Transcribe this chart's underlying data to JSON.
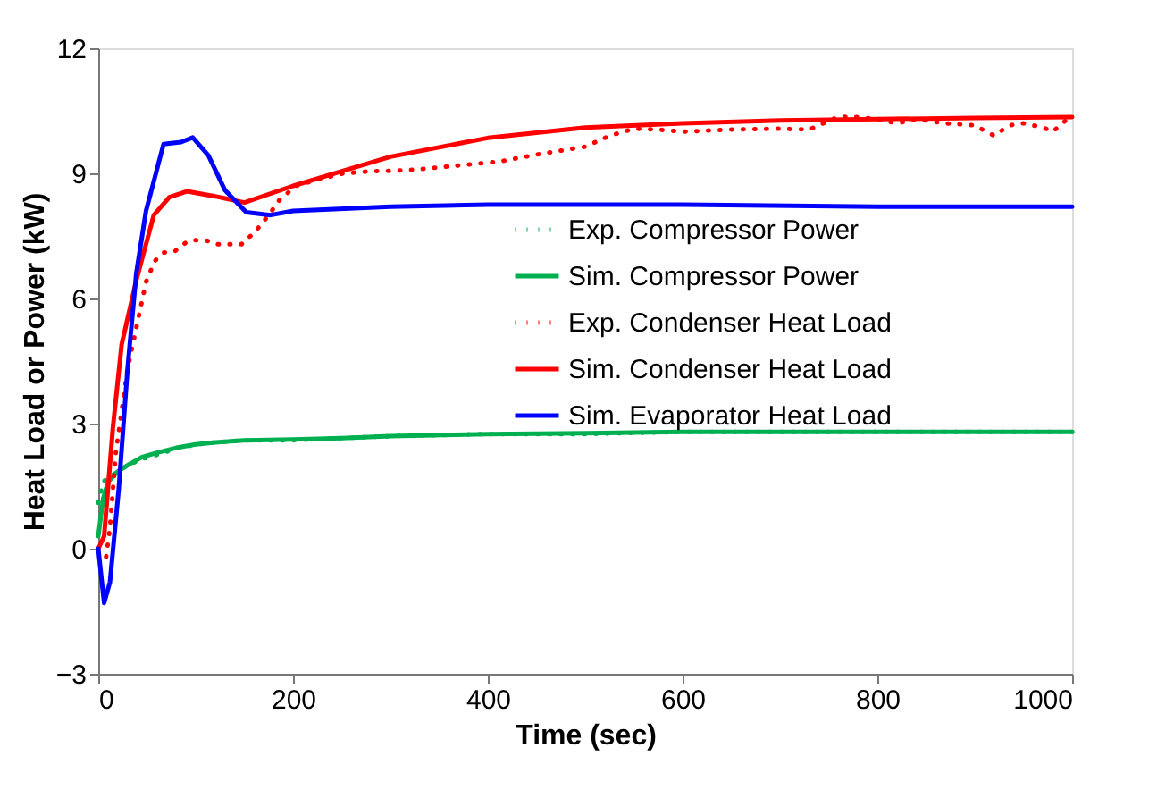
{
  "chart_data": {
    "type": "line",
    "xlabel": "Time (sec)",
    "ylabel": "Heat Load or Power (kW)",
    "xlim": [
      0,
      1000
    ],
    "xticks": [
      0,
      200,
      400,
      600,
      800,
      1000
    ],
    "ylim": [
      -3,
      12
    ],
    "yticks": [
      -3,
      0,
      3,
      6,
      9,
      12
    ],
    "grid": false,
    "legend": "right",
    "series": [
      {
        "name": "Exp. Compressor Power",
        "color": "#00b050",
        "line_style": "dotted",
        "x": [
          0,
          5,
          10,
          20,
          30,
          45,
          60,
          80,
          100,
          120,
          150,
          200,
          250,
          300,
          400,
          500,
          600,
          700,
          800,
          900,
          1000
        ],
        "values": [
          1.1,
          1.6,
          1.7,
          1.85,
          2.0,
          2.15,
          2.25,
          2.4,
          2.5,
          2.55,
          2.6,
          2.6,
          2.65,
          2.7,
          2.75,
          2.75,
          2.8,
          2.8,
          2.8,
          2.8,
          2.8
        ]
      },
      {
        "name": "Sim. Compressor Power",
        "color": "#00b050",
        "line_style": "solid",
        "x": [
          0,
          5,
          10,
          20,
          30,
          45,
          60,
          80,
          100,
          120,
          150,
          200,
          250,
          300,
          400,
          500,
          600,
          700,
          800,
          900,
          1000
        ],
        "values": [
          0.3,
          1.2,
          1.6,
          1.85,
          2.0,
          2.2,
          2.3,
          2.42,
          2.5,
          2.55,
          2.6,
          2.62,
          2.65,
          2.7,
          2.75,
          2.77,
          2.8,
          2.8,
          2.8,
          2.8,
          2.8
        ]
      },
      {
        "name": "Exp. Condenser Heat Load",
        "color": "#ff0000",
        "line_style": "dotted",
        "x": [
          8,
          12,
          18,
          24,
          30,
          40,
          49,
          58,
          67,
          79,
          91,
          100,
          110,
          122,
          134,
          147,
          161,
          175,
          186,
          203,
          225,
          252,
          280,
          313,
          340,
          374,
          411,
          450,
          500,
          525,
          550,
          575,
          600,
          650,
          700,
          730,
          760,
          780,
          800,
          820,
          840,
          870,
          900,
          920,
          935,
          950,
          970,
          980,
          1000
        ],
        "values": [
          -0.2,
          0.5,
          2.3,
          3.3,
          4.3,
          5.4,
          6.4,
          6.9,
          7.1,
          7.14,
          7.36,
          7.4,
          7.4,
          7.3,
          7.3,
          7.3,
          7.6,
          8.0,
          8.36,
          8.7,
          8.85,
          9.0,
          9.05,
          9.07,
          9.12,
          9.2,
          9.28,
          9.45,
          9.64,
          9.9,
          10.07,
          10.05,
          10.0,
          10.05,
          10.07,
          10.05,
          10.36,
          10.35,
          10.3,
          10.2,
          10.3,
          10.2,
          10.15,
          9.9,
          10.15,
          10.2,
          10.1,
          10.0,
          10.4
        ]
      },
      {
        "name": "Sim. Condenser Heat Load",
        "color": "#ff0000",
        "line_style": "solid",
        "x": [
          0,
          6,
          15,
          24,
          39,
          57,
          73,
          91,
          120,
          150,
          200,
          250,
          300,
          400,
          500,
          600,
          700,
          800,
          900,
          1000
        ],
        "values": [
          0,
          0.3,
          2.9,
          4.9,
          6.43,
          8.0,
          8.43,
          8.57,
          8.45,
          8.3,
          8.7,
          9.05,
          9.4,
          9.85,
          10.1,
          10.2,
          10.27,
          10.3,
          10.33,
          10.35
        ]
      },
      {
        "name": "Sim. Evaporator Heat Load",
        "color": "#0000ff",
        "line_style": "solid",
        "x": [
          0,
          6,
          12,
          21,
          30,
          39,
          49,
          67,
          85,
          97,
          113,
          130,
          152,
          177,
          200,
          300,
          400,
          500,
          600,
          800,
          1000
        ],
        "values": [
          0,
          -1.3,
          -0.8,
          1.43,
          4.3,
          6.6,
          8.1,
          9.7,
          9.75,
          9.86,
          9.43,
          8.6,
          8.07,
          8.0,
          8.1,
          8.2,
          8.25,
          8.25,
          8.25,
          8.2,
          8.2
        ]
      }
    ]
  }
}
